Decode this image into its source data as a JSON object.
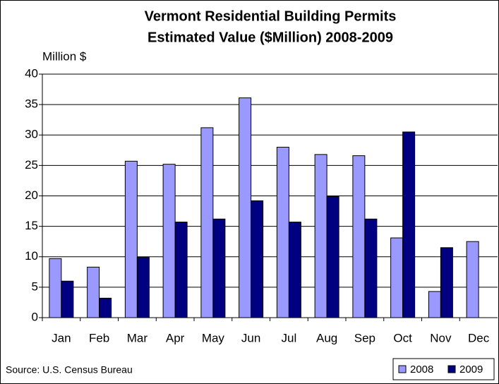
{
  "chart_data": {
    "type": "bar",
    "title": [
      "Vermont Residential Building Permits",
      "Estimated Value ($Million) 2008-2009"
    ],
    "y_label": "Million $",
    "source": "Source: U.S. Census Bureau",
    "categories": [
      "Jan",
      "Feb",
      "Mar",
      "Apr",
      "May",
      "Jun",
      "Jul",
      "Aug",
      "Sep",
      "Oct",
      "Nov",
      "Dec"
    ],
    "series": [
      {
        "name": "2008",
        "color": "#9999ff",
        "values": [
          9.7,
          8.3,
          25.7,
          25.2,
          31.2,
          36.1,
          28.0,
          26.8,
          26.6,
          13.1,
          4.3,
          12.5
        ]
      },
      {
        "name": "2009",
        "color": "#000080",
        "values": [
          6.0,
          3.2,
          9.9,
          15.7,
          16.2,
          19.2,
          15.7,
          19.9,
          16.2,
          30.5,
          11.5,
          null
        ]
      }
    ],
    "ylim": [
      0,
      40
    ],
    "yticks": [
      0,
      5,
      10,
      15,
      20,
      25,
      30,
      35,
      40
    ],
    "grid": true,
    "legend": "bottom-right"
  }
}
